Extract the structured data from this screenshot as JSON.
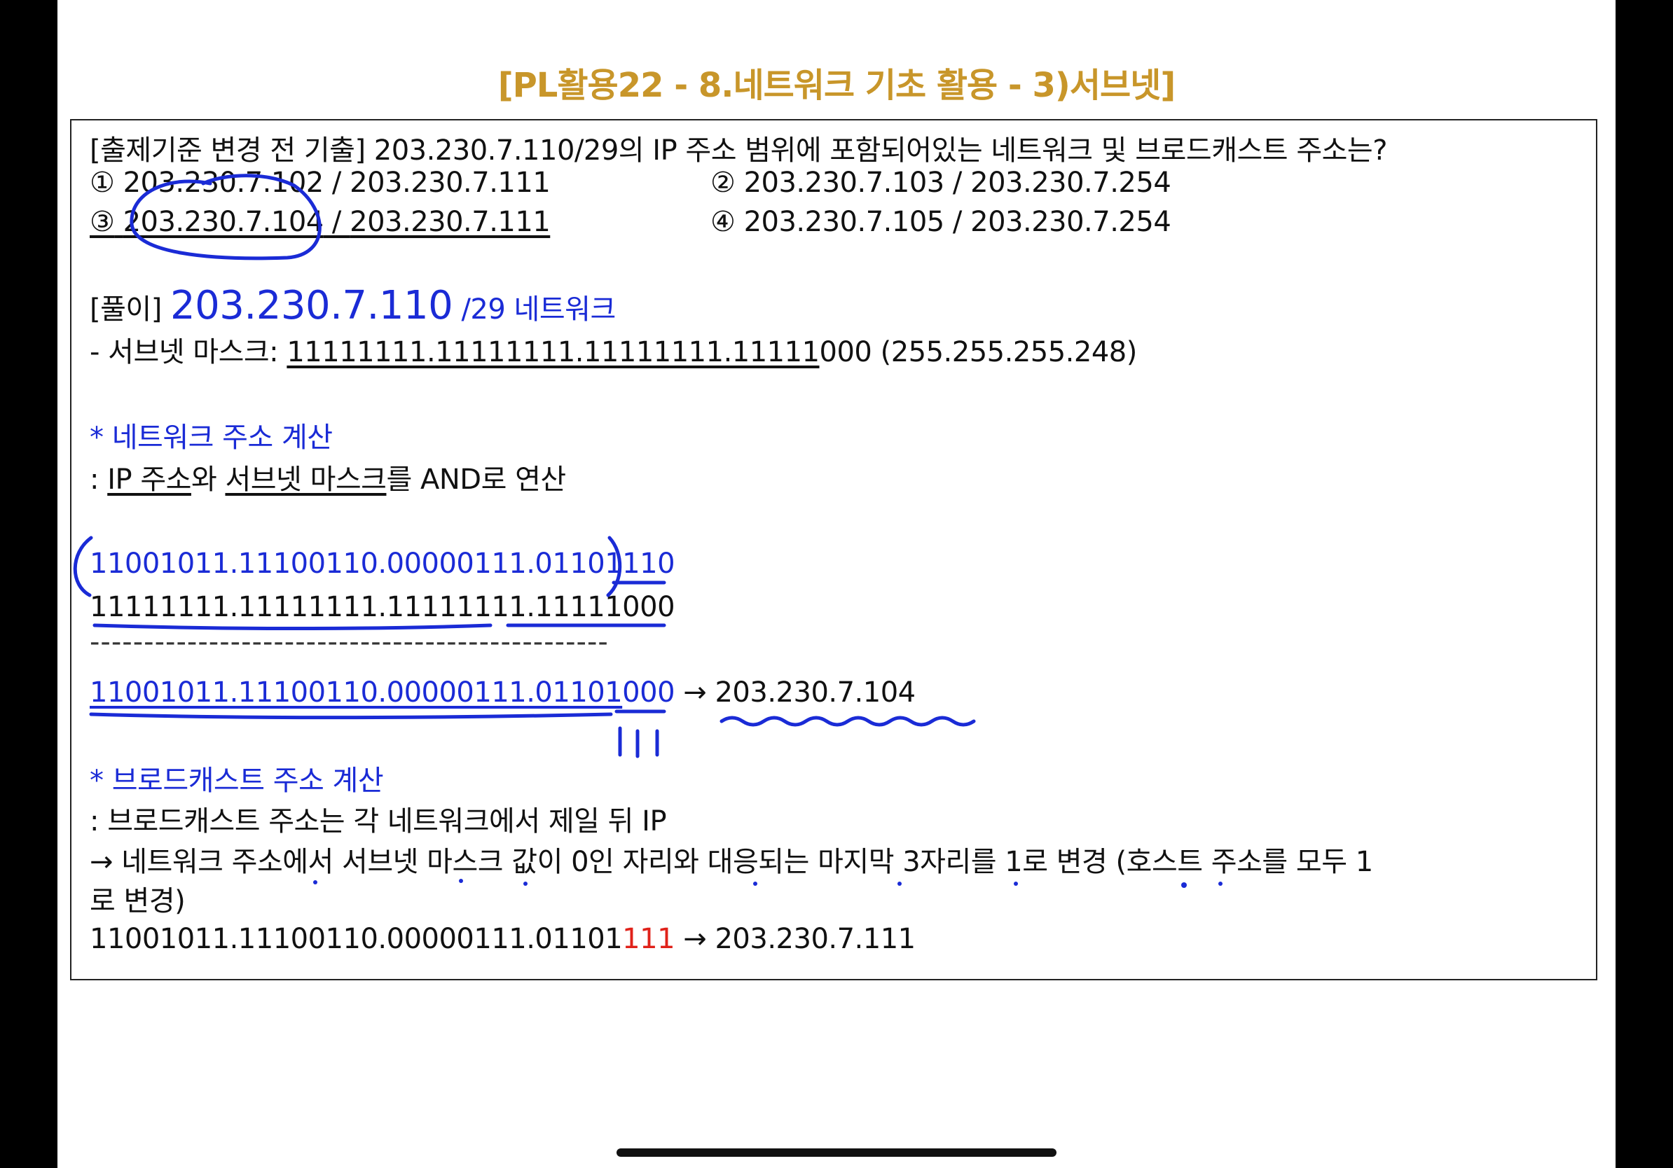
{
  "title": "[PL활용22 - 8.네트워크 기초 활용 - 3)서브넷]",
  "question": {
    "text": "[출제기준 변경 전 기출] 203.230.7.110/29의 IP 주소 범위에 포함되어있는 네트워크 및 브로드캐스트 주소는?",
    "options": [
      {
        "marker": "①",
        "network": "203.230.7.102",
        "broadcast": "203.230.7.111"
      },
      {
        "marker": "②",
        "network": "203.230.7.103",
        "broadcast": "203.230.7.254"
      },
      {
        "marker": "③",
        "network": "203.230.7.104",
        "broadcast": "203.230.7.111"
      },
      {
        "marker": "④",
        "network": "203.230.7.105",
        "broadcast": "203.230.7.254"
      }
    ],
    "separator": " / "
  },
  "solution": {
    "label": "[풀이]",
    "ip": "203.230.7.110",
    "prefix": "/29 네트워크",
    "mask_label": "- 서브넷 마스크: ",
    "mask_binary_underlined": "11111111.11111111.11111111.11111",
    "mask_binary_tail": "000",
    "mask_decimal": " (255.255.255.248)"
  },
  "network_calc": {
    "heading": "* 네트워크 주소 계산",
    "desc_prefix": ": ",
    "desc_ip": "IP 주소",
    "desc_and": "와 ",
    "desc_mask": "서브넷 마스크",
    "desc_suffix": "를 AND로 연산",
    "ip_binary_head": "11001011.11100110.00000111.01101",
    "ip_binary_tail": "110",
    "mask_binary_head": "11111111.11111111.11111111.11111",
    "mask_binary_tail": "000",
    "divider": "------------------------------------------------",
    "result_head": "11001011.11100110.00000111.01101",
    "result_tail": "000",
    "arrow": " → ",
    "result_decimal": "203.230.7.104"
  },
  "broadcast_calc": {
    "heading": "* 브로드캐스트 주소 계산",
    "desc": ": 브로드캐스트 주소는 각 네트워크에서 제일 뒤 IP",
    "rule_line1": "→ 네트워크 주소에서 서브넷 마스크 값이 0인 자리와 대응되는 마지막 3자리를 1로 변경 (호스트 주소를 모두 1",
    "rule_line2": "로 변경)",
    "result_head": "11001011.11100110.00000111.01101",
    "result_tail": "111",
    "arrow": " → ",
    "result_decimal": "203.230.7.111"
  },
  "colors": {
    "title": "#c8962a",
    "accent_blue": "#1a2bd6",
    "highlight_red": "#e0221a"
  }
}
